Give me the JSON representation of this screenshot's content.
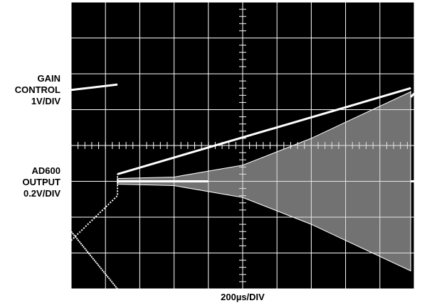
{
  "chart_data": {
    "type": "line",
    "title": "",
    "xlabel": "200µs/DIV",
    "grid": true,
    "x_divisions": 10,
    "y_divisions": 8,
    "traces": [
      {
        "label_lines": [
          "GAIN",
          "CONTROL",
          "1V/DIV"
        ],
        "description_points_div": [
          [
            0.0,
            1.35
          ],
          [
            1.35,
            2.6
          ],
          [
            1.35,
            3.2
          ],
          [
            9.9,
            5.6
          ],
          [
            11.0,
            5.75
          ]
        ]
      },
      {
        "label_lines": [
          "AD600",
          "OUTPUT",
          "0.2V/DIV"
        ],
        "envelope_div": [
          [
            1.35,
            0.08
          ],
          [
            3.0,
            0.12
          ],
          [
            5.0,
            0.45
          ],
          [
            7.0,
            1.2
          ],
          [
            8.0,
            1.65
          ],
          [
            9.9,
            2.5
          ]
        ]
      }
    ]
  }
}
